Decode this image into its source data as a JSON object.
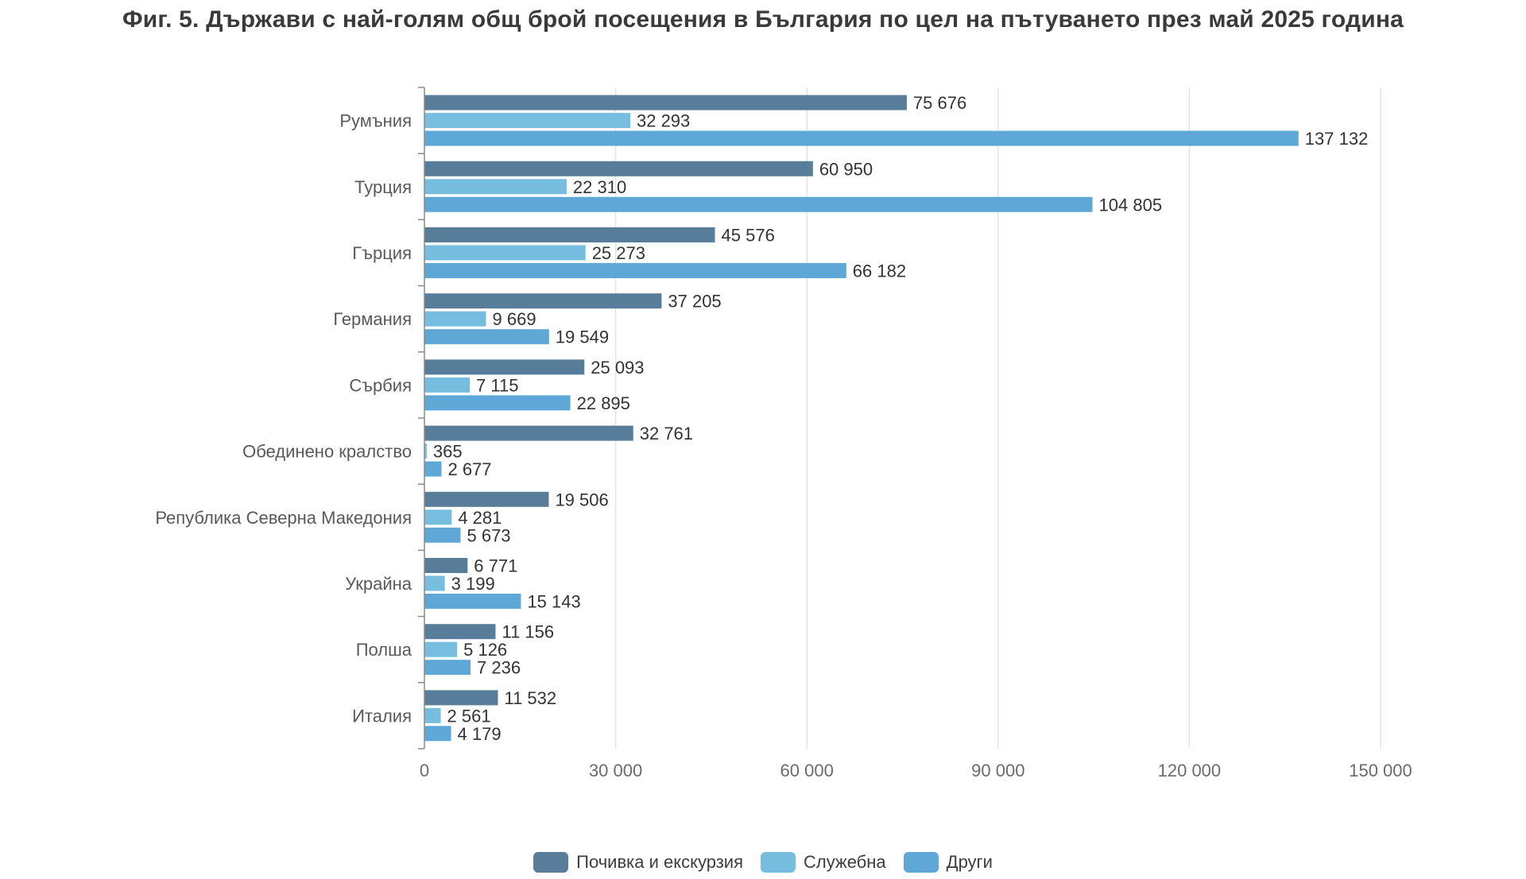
{
  "chart_data": {
    "type": "bar",
    "orientation": "horizontal",
    "title": "Фиг. 5. Държави с най-голям общ брой посещения в България по цел на пътуването през май 2025 година",
    "categories": [
      "Румъния",
      "Турция",
      "Гърция",
      "Германия",
      "Сърбия",
      "Обединено кралство",
      "Република Северна Македония",
      "Украйна",
      "Полша",
      "Италия"
    ],
    "series": [
      {
        "name": "Почивка и екскурзия",
        "color": "#577d9b",
        "values": [
          75676,
          60950,
          45576,
          37205,
          25093,
          32761,
          19506,
          6771,
          11156,
          11532
        ],
        "labels": [
          "75 676",
          "60 950",
          "45 576",
          "37 205",
          "25 093",
          "32 761",
          "19 506",
          "6 771",
          "11 156",
          "11 532"
        ]
      },
      {
        "name": "Служебна",
        "color": "#77bde0",
        "values": [
          32293,
          22310,
          25273,
          9669,
          7115,
          365,
          4281,
          3199,
          5126,
          2561
        ],
        "labels": [
          "32 293",
          "22 310",
          "25 273",
          "9 669",
          "7 115",
          "365",
          "4 281",
          "3 199",
          "5 126",
          "2 561"
        ]
      },
      {
        "name": "Други",
        "color": "#5ea8d8",
        "values": [
          137132,
          104805,
          66182,
          19549,
          22895,
          2677,
          5673,
          15143,
          7236,
          4179
        ],
        "labels": [
          "137 132",
          "104 805",
          "66 182",
          "19 549",
          "22 895",
          "2 677",
          "5 673",
          "15 143",
          "7 236",
          "4 179"
        ]
      }
    ],
    "xlim": [
      0,
      150000
    ],
    "xticks": [
      0,
      30000,
      60000,
      90000,
      120000,
      150000
    ],
    "xtick_labels": [
      "0",
      "30 000",
      "60 000",
      "90 000",
      "120 000",
      "150 000"
    ],
    "grid": "vertical",
    "legend_position": "bottom-center"
  }
}
